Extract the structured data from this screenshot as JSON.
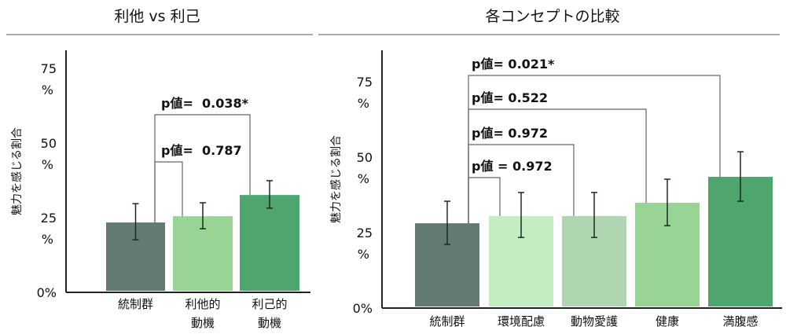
{
  "chart_data": [
    {
      "type": "bar",
      "title": "利他 vs 利己",
      "ylabel": "魅力を感じる割合",
      "ylim": [
        0,
        75
      ],
      "yticks": [
        {
          "num": "0%",
          "unit": ""
        },
        {
          "num": "25",
          "unit": "%"
        },
        {
          "num": "50",
          "unit": "%"
        },
        {
          "num": "75",
          "unit": "%"
        }
      ],
      "categories": [
        [
          "統制群"
        ],
        [
          "利他的",
          "動機"
        ],
        [
          "利己的",
          "動機"
        ]
      ],
      "values": [
        23.4,
        25.5,
        32.6
      ],
      "error_low": [
        17.6,
        21.3,
        28.2
      ],
      "error_high": [
        29.7,
        30.0,
        37.4
      ],
      "colors": [
        "#627a73",
        "#98d595",
        "#4ea66e"
      ],
      "comparisons": [
        {
          "from": 0,
          "to": 1,
          "label": "p値=  0.787"
        },
        {
          "from": 0,
          "to": 2,
          "label": "p値=  0.038*"
        }
      ]
    },
    {
      "type": "bar",
      "title": "各コンセプトの比較",
      "ylabel": "魅力を感じる割合",
      "ylim": [
        0,
        75
      ],
      "yticks": [
        {
          "num": "0%",
          "unit": ""
        },
        {
          "num": "25",
          "unit": "%"
        },
        {
          "num": "50",
          "unit": "%"
        },
        {
          "num": "75",
          "unit": "%"
        }
      ],
      "categories": [
        [
          "統制群"
        ],
        [
          "環境配慮"
        ],
        [
          "動物愛護"
        ],
        [
          "健康"
        ],
        [
          "満腹感"
        ]
      ],
      "values": [
        28.1,
        30.5,
        30.5,
        34.9,
        43.5
      ],
      "error_low": [
        21.1,
        23.4,
        23.4,
        27.3,
        35.4
      ],
      "error_high": [
        35.4,
        38.3,
        38.3,
        42.7,
        51.8
      ],
      "colors": [
        "#627a73",
        "#c3eec3",
        "#afd6b0",
        "#98d595",
        "#4ea66e"
      ],
      "comparisons": [
        {
          "from": 0,
          "to": 1,
          "label": "p値 = 0.972"
        },
        {
          "from": 0,
          "to": 2,
          "label": "p値= 0.972"
        },
        {
          "from": 0,
          "to": 3,
          "label": "p値= 0.522"
        },
        {
          "from": 0,
          "to": 4,
          "label": "p値= 0.021*"
        }
      ]
    }
  ]
}
